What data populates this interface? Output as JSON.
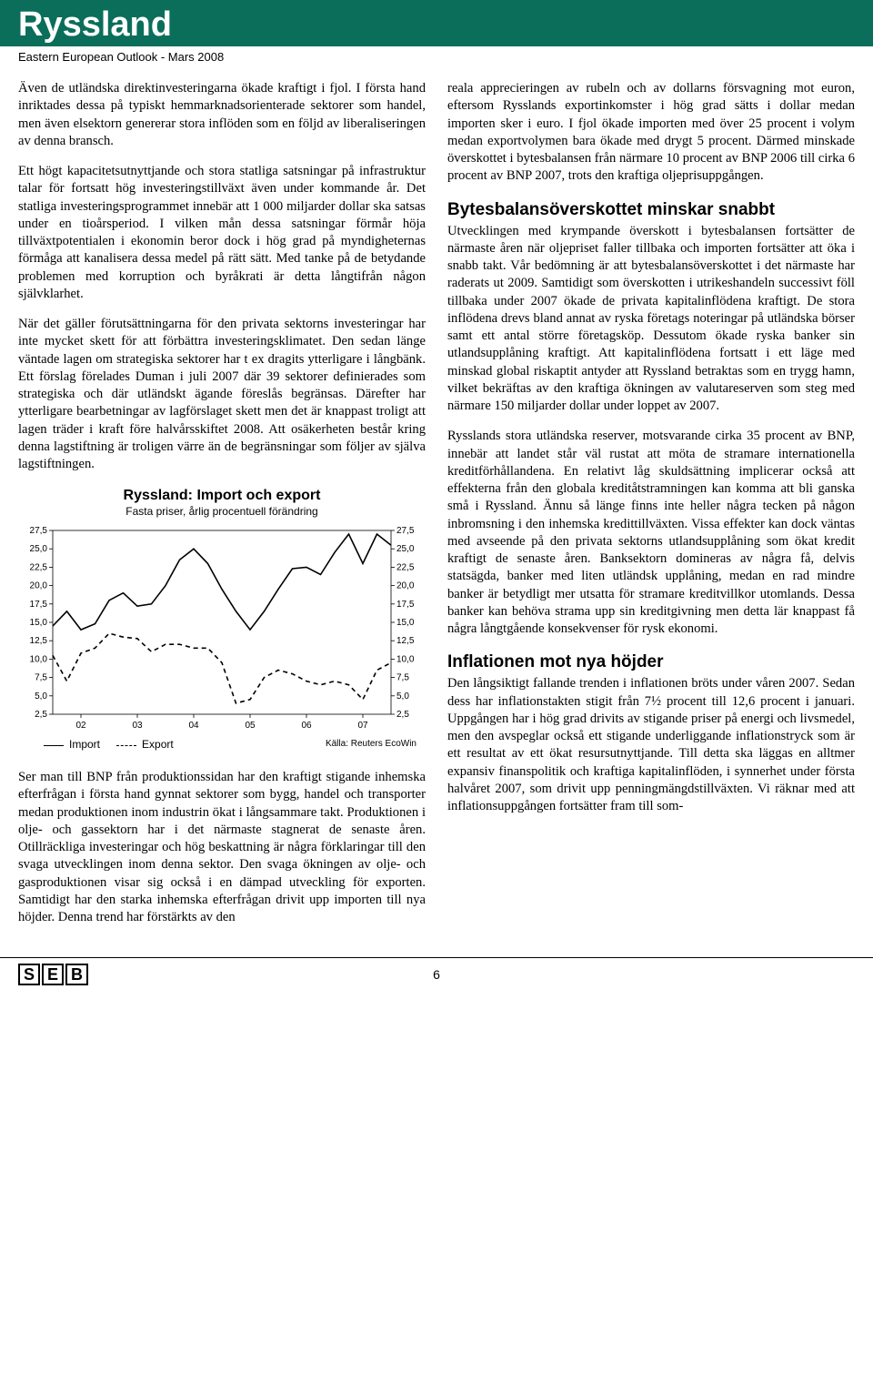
{
  "header": {
    "country": "Ryssland",
    "sub": "Eastern European Outlook - Mars 2008"
  },
  "left": {
    "p1": "Även de utländska direktinvesteringarna ökade kraftigt i fjol. I första hand inriktades dessa på typiskt hemmarknadsorienterade sektorer som handel, men även elsektorn genererar stora inflöden som en följd av liberaliseringen av denna bransch.",
    "p2": "Ett högt kapacitetsutnyttjande och stora statliga satsningar på infrastruktur talar för fortsatt hög investeringstillväxt även under kommande år. Det statliga investeringsprogrammet innebär att 1 000 miljarder dollar ska satsas under en tioårsperiod. I vilken mån dessa satsningar förmår höja tillväxtpotentialen i ekonomin beror dock i hög grad på myndigheternas förmåga att kanalisera dessa medel på rätt sätt. Med tanke på de betydande problemen med korruption och byråkrati är detta långtifrån någon självklarhet.",
    "p3": "När det gäller förutsättningarna för den privata sektorns investeringar har inte mycket skett för att förbättra investeringsklimatet. Den sedan länge väntade lagen om strategiska sektorer har t ex dragits ytterligare i långbänk. Ett förslag förelades Duman i juli 2007 där 39 sektorer definierades som strategiska och där utländskt ägande föreslås begränsas. Därefter har ytterligare bearbetningar av lagförslaget skett men det är knappast troligt att lagen träder i kraft före halvårsskiftet 2008. Att osäkerheten består kring denna lagstiftning är troligen värre än de begränsningar som följer av själva lagstiftningen.",
    "p4": "Ser man till BNP från produktionssidan har den kraftigt stigande inhemska efterfrågan i första hand gynnat sektorer som bygg, handel och transporter medan produktionen inom industrin ökat i långsammare takt. Produktionen i olje- och gassektorn har i det närmaste stagnerat de senaste åren. Otillräckliga investeringar och hög beskattning är några förklaringar till den svaga utvecklingen inom denna sektor. Den svaga ökningen av olje- och gasproduktionen visar sig också i en dämpad utveckling för exporten. Samtidigt har den starka inhemska efterfrågan drivit upp importen till nya höjder. Denna trend har förstärkts av den"
  },
  "chart": {
    "title": "Ryssland: Import och export",
    "subtitle": "Fasta priser, årlig procentuell förändring",
    "y_ticks": [
      2.5,
      5.0,
      7.5,
      10.0,
      12.5,
      15.0,
      17.5,
      20.0,
      22.5,
      25.0,
      27.5
    ],
    "y_tick_labels": [
      "2,5",
      "5,0",
      "7,5",
      "10,0",
      "12,5",
      "15,0",
      "17,5",
      "20,0",
      "22,5",
      "25,0",
      "27,5"
    ],
    "x_ticks": [
      2002,
      2003,
      2004,
      2005,
      2006,
      2007
    ],
    "x_tick_labels": [
      "02",
      "03",
      "04",
      "05",
      "06",
      "07"
    ],
    "ylim": [
      2.5,
      27.5
    ],
    "xlim": [
      2002,
      2008
    ],
    "import_series": [
      [
        2002.0,
        14.5
      ],
      [
        2002.25,
        16.5
      ],
      [
        2002.5,
        14.0
      ],
      [
        2002.75,
        14.8
      ],
      [
        2003.0,
        18.0
      ],
      [
        2003.25,
        19.0
      ],
      [
        2003.5,
        17.2
      ],
      [
        2003.75,
        17.5
      ],
      [
        2004.0,
        20.0
      ],
      [
        2004.25,
        23.5
      ],
      [
        2004.5,
        25.0
      ],
      [
        2004.75,
        23.0
      ],
      [
        2005.0,
        19.5
      ],
      [
        2005.25,
        16.5
      ],
      [
        2005.5,
        14.0
      ],
      [
        2005.75,
        16.5
      ],
      [
        2006.0,
        19.5
      ],
      [
        2006.25,
        22.3
      ],
      [
        2006.5,
        22.5
      ],
      [
        2006.75,
        21.5
      ],
      [
        2007.0,
        24.5
      ],
      [
        2007.25,
        27.0
      ],
      [
        2007.5,
        23.0
      ],
      [
        2007.75,
        27.0
      ],
      [
        2008.0,
        25.5
      ]
    ],
    "export_series": [
      [
        2002.0,
        10.5
      ],
      [
        2002.25,
        7.0
      ],
      [
        2002.5,
        10.8
      ],
      [
        2002.75,
        11.5
      ],
      [
        2003.0,
        13.5
      ],
      [
        2003.25,
        13.0
      ],
      [
        2003.5,
        12.8
      ],
      [
        2003.75,
        11.0
      ],
      [
        2004.0,
        12.0
      ],
      [
        2004.25,
        12.0
      ],
      [
        2004.5,
        11.5
      ],
      [
        2004.75,
        11.5
      ],
      [
        2005.0,
        9.5
      ],
      [
        2005.25,
        4.0
      ],
      [
        2005.5,
        4.5
      ],
      [
        2005.75,
        7.5
      ],
      [
        2006.0,
        8.5
      ],
      [
        2006.25,
        8.0
      ],
      [
        2006.5,
        7.0
      ],
      [
        2006.75,
        6.5
      ],
      [
        2007.0,
        7.0
      ],
      [
        2007.25,
        6.5
      ],
      [
        2007.5,
        4.5
      ],
      [
        2007.75,
        8.5
      ],
      [
        2008.0,
        9.5
      ]
    ],
    "legend": {
      "import": "Import",
      "export": "Export"
    },
    "source": "Källa: Reuters EcoWin",
    "stroke_color": "#000",
    "bg": "#fff"
  },
  "right": {
    "p1": "reala apprecieringen av rubeln och av dollarns försvagning mot euron, eftersom Rysslands exportinkomster i hög grad sätts i dollar medan importen sker i euro. I fjol ökade importen med över 25 procent i volym medan exportvolymen bara ökade med drygt 5 procent. Därmed minskade överskottet i bytesbalansen från närmare 10 procent av BNP 2006 till cirka 6 procent av BNP 2007, trots den kraftiga oljeprisuppgången.",
    "h1": "Bytesbalansöverskottet minskar snabbt",
    "p2": "Utvecklingen med krympande överskott i bytesbalansen fortsätter de närmaste åren när oljepriset faller tillbaka och importen fortsätter att öka i snabb takt. Vår bedömning är att bytesbalansöverskottet i det närmaste har raderats ut 2009. Samtidigt som överskotten i utrikeshandeln successivt föll tillbaka under 2007 ökade de privata kapitalinflödena kraftigt. De stora inflödena drevs bland annat av ryska företags noteringar på utländska börser samt ett antal större företagsköp. Dessutom ökade ryska banker sin utlandsupplåning kraftigt. Att kapitalinflödena fortsatt i ett läge med minskad global riskaptit antyder att Ryssland betraktas som en trygg hamn, vilket bekräftas av den kraftiga ökningen av valutareserven som steg med närmare 150 miljarder dollar under loppet av 2007.",
    "p3": "Rysslands stora utländska reserver, motsvarande cirka 35 procent av BNP, innebär att landet står väl rustat att möta de stramare internationella kreditförhållandena. En relativt låg skuldsättning implicerar också att effekterna från den globala kreditåtstramningen kan komma att bli ganska små i Ryssland. Ännu så länge finns inte heller några tecken på någon inbromsning i den inhemska kredittillväxten. Vissa effekter kan dock väntas med avseende på den privata sektorns utlandsupplåning som ökat kredit kraftigt de senaste åren. Banksektorn domineras av några få, delvis statsägda, banker med liten utländsk upplåning, medan en rad mindre banker är betydligt mer utsatta för stramare kreditvillkor utomlands. Dessa banker kan behöva strama upp sin kreditgivning men detta lär knappast få några långtgående konsekvenser för rysk ekonomi.",
    "h2": "Inflationen mot nya höjder",
    "p4": "Den långsiktigt fallande trenden i inflationen bröts under våren 2007. Sedan dess har inflationstakten stigit från 7½ procent till 12,6 procent i januari. Uppgången har i hög grad drivits av stigande priser på energi och livsmedel, men den avspeglar också ett stigande underliggande inflationstryck som är ett resultat av ett ökat resursutnyttjande. Till detta ska läggas en alltmer expansiv finanspolitik och kraftiga kapitalinflöden, i synnerhet under första halvåret 2007, som drivit upp penningmängdstillväxten. Vi räknar med att inflationsuppgången fortsätter fram till som-"
  },
  "footer": {
    "logo": "S|E|B",
    "page": "6"
  }
}
